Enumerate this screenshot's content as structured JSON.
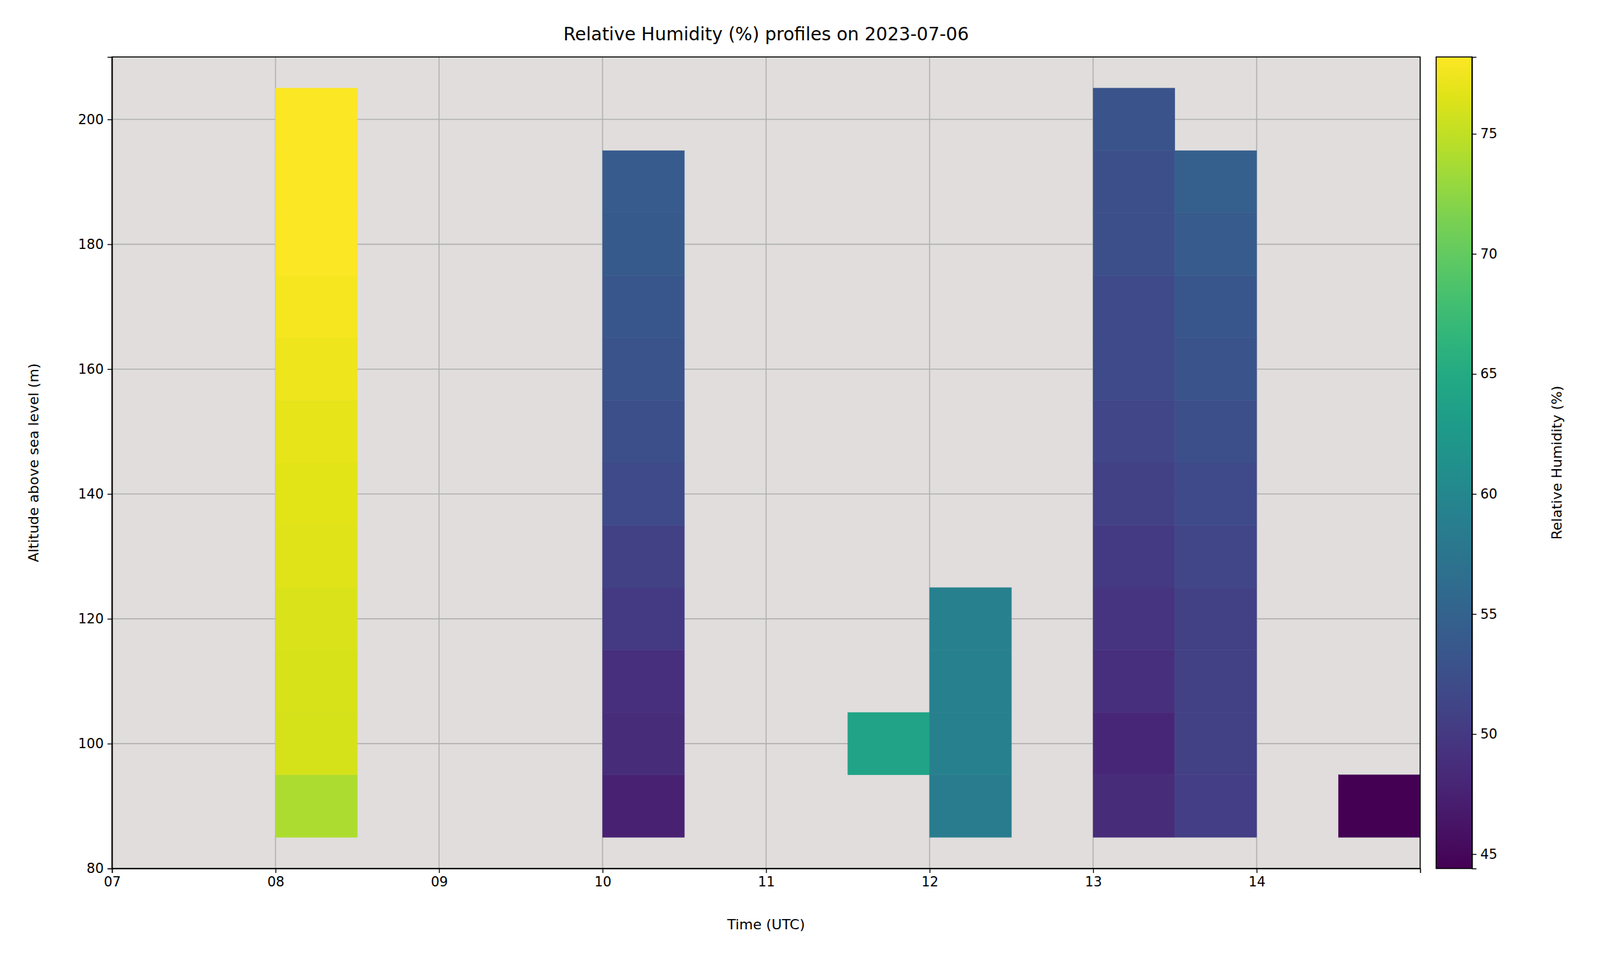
{
  "chart_data": {
    "type": "heatmap",
    "title": "Relative Humidity (%) profiles on 2023-07-06",
    "x_label": "Time (UTC)",
    "y_label": "Altitude above sea level (m)",
    "xlim": [
      7,
      15
    ],
    "xticks": [
      {
        "value": 7,
        "label": "07"
      },
      {
        "value": 8,
        "label": "08"
      },
      {
        "value": 9,
        "label": "09"
      },
      {
        "value": 10,
        "label": "10"
      },
      {
        "value": 11,
        "label": "11"
      },
      {
        "value": 12,
        "label": "12"
      },
      {
        "value": 13,
        "label": "13"
      },
      {
        "value": 14,
        "label": "14"
      }
    ],
    "ylim": [
      80,
      210
    ],
    "yticks": [
      80,
      100,
      120,
      140,
      160,
      180,
      200
    ],
    "grid": true,
    "columns": [
      {
        "x": [
          8,
          8.5
        ],
        "bins": [
          85,
          95,
          105,
          115,
          125,
          135,
          145,
          155,
          165,
          175,
          185,
          195,
          205
        ],
        "values": [
          74,
          76,
          76.2,
          76.3,
          76.5,
          76.7,
          77,
          77.3,
          77.8,
          78,
          78,
          78
        ]
      },
      {
        "x": [
          10,
          10.5
        ],
        "bins": [
          85,
          95,
          105,
          115,
          125,
          135,
          145,
          155,
          165,
          175,
          185,
          195
        ],
        "values": [
          47.5,
          48.5,
          49,
          50,
          51,
          52,
          52.5,
          53,
          53.5,
          53.8,
          54
        ]
      },
      {
        "x": [
          11.5,
          12
        ],
        "bins": [
          95,
          105
        ],
        "values": [
          64
        ]
      },
      {
        "x": [
          12,
          12.5
        ],
        "bins": [
          85,
          95,
          105,
          115,
          125
        ],
        "values": [
          58.5,
          59,
          59,
          59
        ]
      },
      {
        "x": [
          13,
          13.5
        ],
        "bins": [
          85,
          95,
          105,
          115,
          125,
          135,
          145,
          155,
          165,
          175,
          185,
          195,
          205
        ],
        "values": [
          48.5,
          48,
          49,
          49.5,
          50,
          51,
          51.5,
          52,
          52,
          52.5,
          52.5,
          53
        ]
      },
      {
        "x": [
          13.5,
          14
        ],
        "bins": [
          85,
          95,
          105,
          115,
          125,
          135,
          145,
          155,
          165,
          175,
          185,
          195
        ],
        "values": [
          50.5,
          51,
          51,
          51,
          51.5,
          52,
          52.5,
          53,
          53.5,
          54,
          54.5
        ]
      },
      {
        "x": [
          14.5,
          15
        ],
        "bins": [
          85,
          95
        ],
        "values": [
          44.5
        ]
      }
    ],
    "colorbar": {
      "label": "Relative Humidity (%)",
      "range": [
        44.4,
        78.2
      ],
      "ticks": [
        45,
        50,
        55,
        60,
        65,
        70,
        75
      ]
    }
  }
}
